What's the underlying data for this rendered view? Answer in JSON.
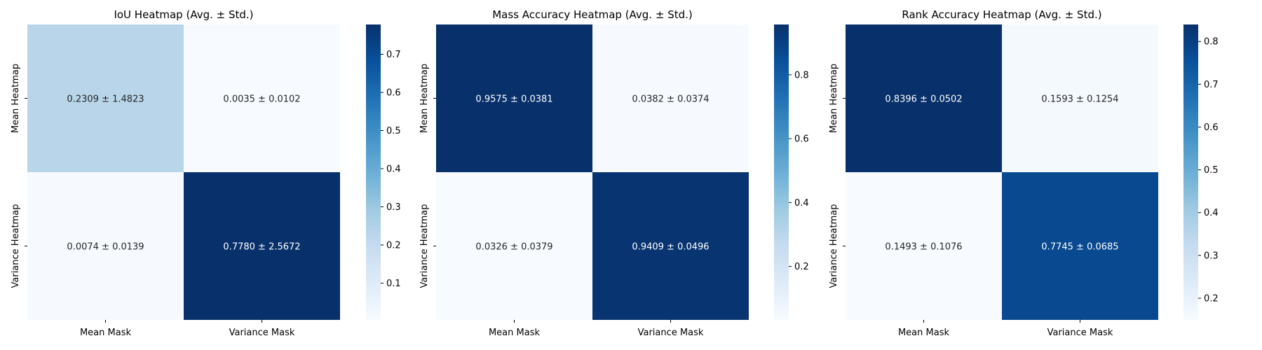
{
  "chart_data": [
    {
      "type": "heatmap",
      "title": "IoU Heatmap (Avg. ± Std.)",
      "x_categories": [
        "Mean Mask",
        "Variance Mask"
      ],
      "y_categories": [
        "Mean Heatmap",
        "Variance Heatmap"
      ],
      "values": [
        [
          0.2309,
          0.0035
        ],
        [
          0.0074,
          0.778
        ]
      ],
      "cell_labels": [
        [
          "0.2309 ± 1.4823",
          "0.0035 ± 0.0102"
        ],
        [
          "0.0074 ± 0.0139",
          "0.7780 ± 2.5672"
        ]
      ],
      "colorbar": {
        "ticks": [
          "0.1",
          "0.2",
          "0.3",
          "0.4",
          "0.5",
          "0.6",
          "0.7"
        ],
        "range": [
          0.0035,
          0.778
        ]
      },
      "colormap": "Blues"
    },
    {
      "type": "heatmap",
      "title": "Mass Accuracy Heatmap (Avg. ± Std.)",
      "x_categories": [
        "Mean Mask",
        "Variance Mask"
      ],
      "y_categories": [
        "Mean Heatmap",
        "Variance Heatmap"
      ],
      "values": [
        [
          0.9575,
          0.0382
        ],
        [
          0.0326,
          0.9409
        ]
      ],
      "cell_labels": [
        [
          "0.9575 ± 0.0381",
          "0.0382 ± 0.0374"
        ],
        [
          "0.0326 ± 0.0379",
          "0.9409 ± 0.0496"
        ]
      ],
      "colorbar": {
        "ticks": [
          "0.2",
          "0.4",
          "0.6",
          "0.8"
        ],
        "range": [
          0.0326,
          0.9575
        ]
      },
      "colormap": "Blues"
    },
    {
      "type": "heatmap",
      "title": "Rank Accuracy Heatmap (Avg. ± Std.)",
      "x_categories": [
        "Mean Mask",
        "Variance Mask"
      ],
      "y_categories": [
        "Mean Heatmap",
        "Variance Heatmap"
      ],
      "values": [
        [
          0.8396,
          0.1593
        ],
        [
          0.1493,
          0.7745
        ]
      ],
      "cell_labels": [
        [
          "0.8396 ± 0.0502",
          "0.1593 ± 0.1254"
        ],
        [
          "0.1493 ± 0.1076",
          "0.7745 ± 0.0685"
        ]
      ],
      "colorbar": {
        "ticks": [
          "0.2",
          "0.3",
          "0.4",
          "0.5",
          "0.6",
          "0.7",
          "0.8"
        ],
        "range": [
          0.1493,
          0.8396
        ]
      },
      "colormap": "Blues"
    }
  ]
}
